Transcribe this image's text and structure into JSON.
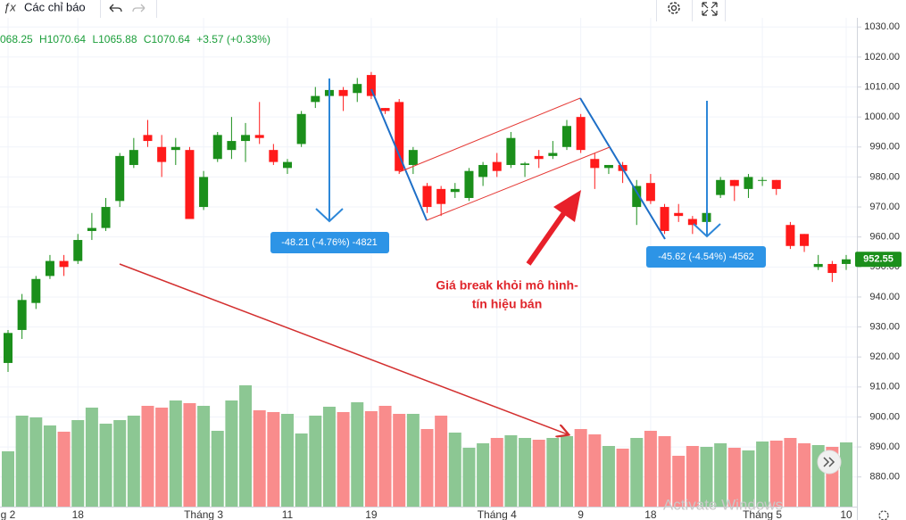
{
  "toolbar": {
    "indicators": "Các chỉ báo"
  },
  "chart_data": {
    "type": "candlestick",
    "ohlc_legend": [
      "068.25",
      "H1070.64",
      "L1065.88",
      "C1070.64",
      "+3.57 (+0.33%)"
    ],
    "categories": [
      "g 2",
      null,
      null,
      null,
      null,
      "18",
      null,
      null,
      null,
      null,
      null,
      null,
      null,
      null,
      "Tháng 3",
      null,
      null,
      null,
      null,
      null,
      "11",
      null,
      null,
      null,
      null,
      null,
      "19",
      null,
      null,
      null,
      null,
      null,
      null,
      null,
      null,
      "Tháng 4",
      null,
      null,
      null,
      null,
      null,
      "9",
      null,
      null,
      null,
      null,
      "18",
      null,
      null,
      null,
      null,
      null,
      null,
      null,
      "Tháng 5",
      null,
      null,
      null,
      null,
      null,
      "10"
    ],
    "open": [
      918,
      929,
      938,
      947,
      952,
      952,
      962,
      963,
      972,
      984,
      994,
      990,
      989,
      989,
      970,
      986,
      989,
      992,
      994,
      989,
      983,
      991,
      1005,
      1007,
      1009,
      1008,
      1014,
      1003,
      1005,
      984,
      977,
      976,
      975,
      973,
      980,
      985,
      984,
      984,
      987,
      987,
      990,
      1000,
      986,
      983,
      984,
      970,
      978,
      970,
      968,
      966,
      965,
      974,
      979,
      976,
      979,
      979,
      964,
      961,
      950,
      951,
      951
    ],
    "high": [
      929,
      941,
      947,
      954,
      954,
      961,
      968,
      973,
      988,
      993,
      999,
      994,
      993,
      990,
      982,
      995,
      1000,
      998,
      1005,
      991,
      986,
      1002,
      1010,
      1012,
      1010,
      1013,
      1015,
      1003,
      1006,
      990,
      978,
      977,
      978,
      983,
      985,
      988,
      995,
      985,
      989,
      992,
      999,
      1001,
      988,
      984,
      985,
      979,
      981,
      971,
      971,
      967,
      971,
      980,
      979,
      981,
      980,
      979,
      965,
      961,
      954,
      952,
      954
    ],
    "low": [
      915,
      926,
      936,
      946,
      947,
      951,
      959,
      962,
      970,
      983,
      990,
      980,
      984,
      966,
      969,
      985,
      986,
      985,
      991,
      984,
      981,
      990,
      1003,
      1006,
      1002,
      1005,
      1006,
      1001,
      981,
      981,
      968,
      967,
      973,
      972,
      977,
      980,
      983,
      980,
      983,
      986,
      989,
      988,
      976,
      981,
      978,
      964,
      971,
      961,
      965,
      961,
      961,
      973,
      972,
      973,
      977,
      974,
      956,
      955,
      949,
      945,
      949
    ],
    "close": [
      928,
      939,
      946,
      952,
      950,
      959,
      963,
      970,
      987,
      989,
      992,
      985,
      990,
      966,
      980,
      994,
      992,
      994,
      993,
      985,
      985,
      1001,
      1007,
      1009,
      1007,
      1011,
      1007,
      1002,
      982,
      989,
      970,
      971,
      976,
      982,
      984,
      982,
      993,
      984.5,
      986,
      988,
      997,
      989,
      983,
      984,
      982,
      977,
      972,
      962,
      967,
      964,
      968,
      979,
      977,
      980,
      979,
      976,
      957,
      957,
      951,
      948,
      952.55
    ],
    "volume": [
      64,
      104,
      102,
      93,
      86,
      99,
      113,
      95,
      99,
      104,
      115,
      113,
      121,
      118,
      115,
      87,
      121,
      138,
      110,
      108,
      106,
      84,
      104,
      114,
      108,
      119,
      109,
      115,
      106,
      106,
      89,
      104,
      85,
      68,
      73,
      79,
      82,
      79,
      77,
      79,
      81,
      89,
      83,
      70,
      67,
      79,
      87,
      81,
      59,
      70,
      69,
      73,
      68,
      65,
      75,
      76,
      79,
      73,
      71,
      69,
      74
    ],
    "volume_lim": [
      0,
      200
    ],
    "up_color": "#1b8f1b",
    "down_color": "#ff1a1a",
    "volume_up_color": "#8cc793",
    "volume_down_color": "#f98c8c",
    "ylim": [
      871,
      1039
    ],
    "yticks": [
      {
        "value": 880,
        "label": "880.00"
      },
      {
        "value": 890,
        "label": "890.00"
      },
      {
        "value": 900,
        "label": "900.00"
      },
      {
        "value": 910,
        "label": "910.00"
      },
      {
        "value": 920,
        "label": "920.00"
      },
      {
        "value": 930,
        "label": "930.00"
      },
      {
        "value": 940,
        "label": "940.00"
      },
      {
        "value": 950,
        "label": "950.00"
      },
      {
        "value": 960,
        "label": "960.00"
      },
      {
        "value": 970,
        "label": "970.00"
      },
      {
        "value": 980,
        "label": "980.00"
      },
      {
        "value": 990,
        "label": "990.00"
      },
      {
        "value": 1000,
        "label": "1000.00"
      },
      {
        "value": 1010,
        "label": "1010.00"
      },
      {
        "value": 1020,
        "label": "1020.00"
      },
      {
        "value": 1030,
        "label": "1030.00"
      }
    ],
    "grid": true,
    "measure_labels": [
      "-48.21 (-4.76%) -4821",
      "-45.62 (-4.54%) -4562"
    ],
    "callout": [
      "Giá break khỏi mô hình-",
      "tín hiệu bán"
    ],
    "watermark": "Activate Windows"
  }
}
